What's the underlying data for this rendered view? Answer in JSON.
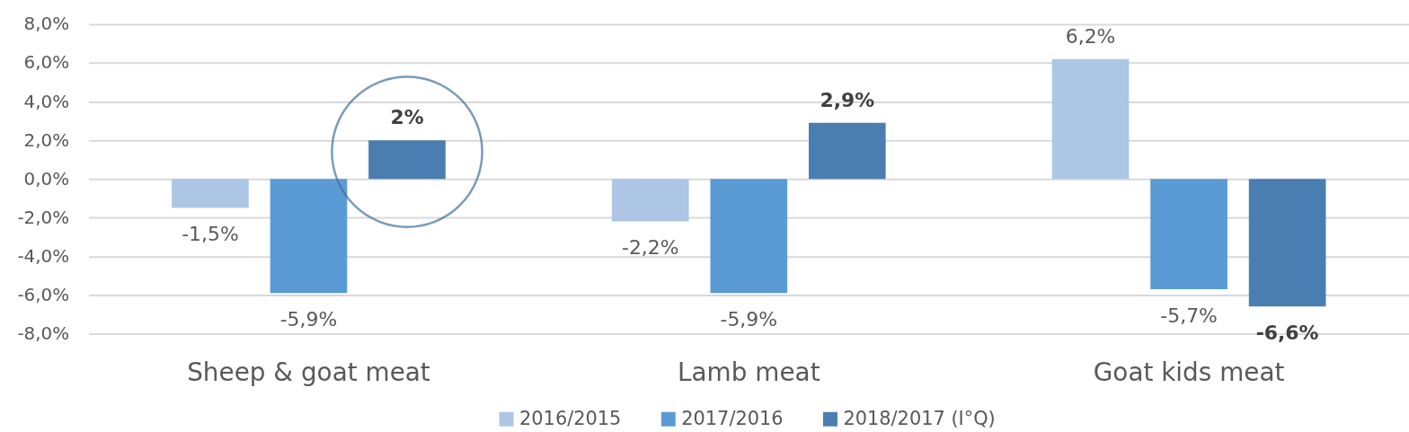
{
  "chart_data": {
    "type": "bar",
    "categories": [
      "Sheep & goat meat",
      "Lamb meat",
      "Goat kids meat"
    ],
    "series": [
      {
        "name": "2016/2015",
        "color": "#adc6e5",
        "values": [
          -1.5,
          -2.2,
          6.2
        ],
        "value_labels": [
          "-1,5%",
          "-2,2%",
          "6,2%"
        ]
      },
      {
        "name": "2017/2016",
        "color": "#5b9bd5",
        "values": [
          -5.9,
          -5.9,
          -5.7
        ],
        "value_labels": [
          "-5,9%",
          "-5,9%",
          "-5,7%"
        ]
      },
      {
        "name": "2018/2017 (I°Q)",
        "color": "#4a7eb0",
        "values": [
          2,
          2.9,
          -6.6
        ],
        "value_labels": [
          "2%",
          "2,9%",
          "-6,6%"
        ]
      }
    ],
    "ylim": [
      -8,
      8
    ],
    "yticks": [
      {
        "value": -8,
        "label": "-8,0%"
      },
      {
        "value": -6,
        "label": "-6,0%"
      },
      {
        "value": -4,
        "label": "-4,0%"
      },
      {
        "value": -2,
        "label": "-2,0%"
      },
      {
        "value": 0,
        "label": "0,0%"
      },
      {
        "value": 2,
        "label": "2,0%"
      },
      {
        "value": 4,
        "label": "4,0%"
      },
      {
        "value": 6,
        "label": "6,0%"
      },
      {
        "value": 8,
        "label": "8,0%"
      }
    ],
    "grid": "y",
    "legend": "bottom"
  }
}
